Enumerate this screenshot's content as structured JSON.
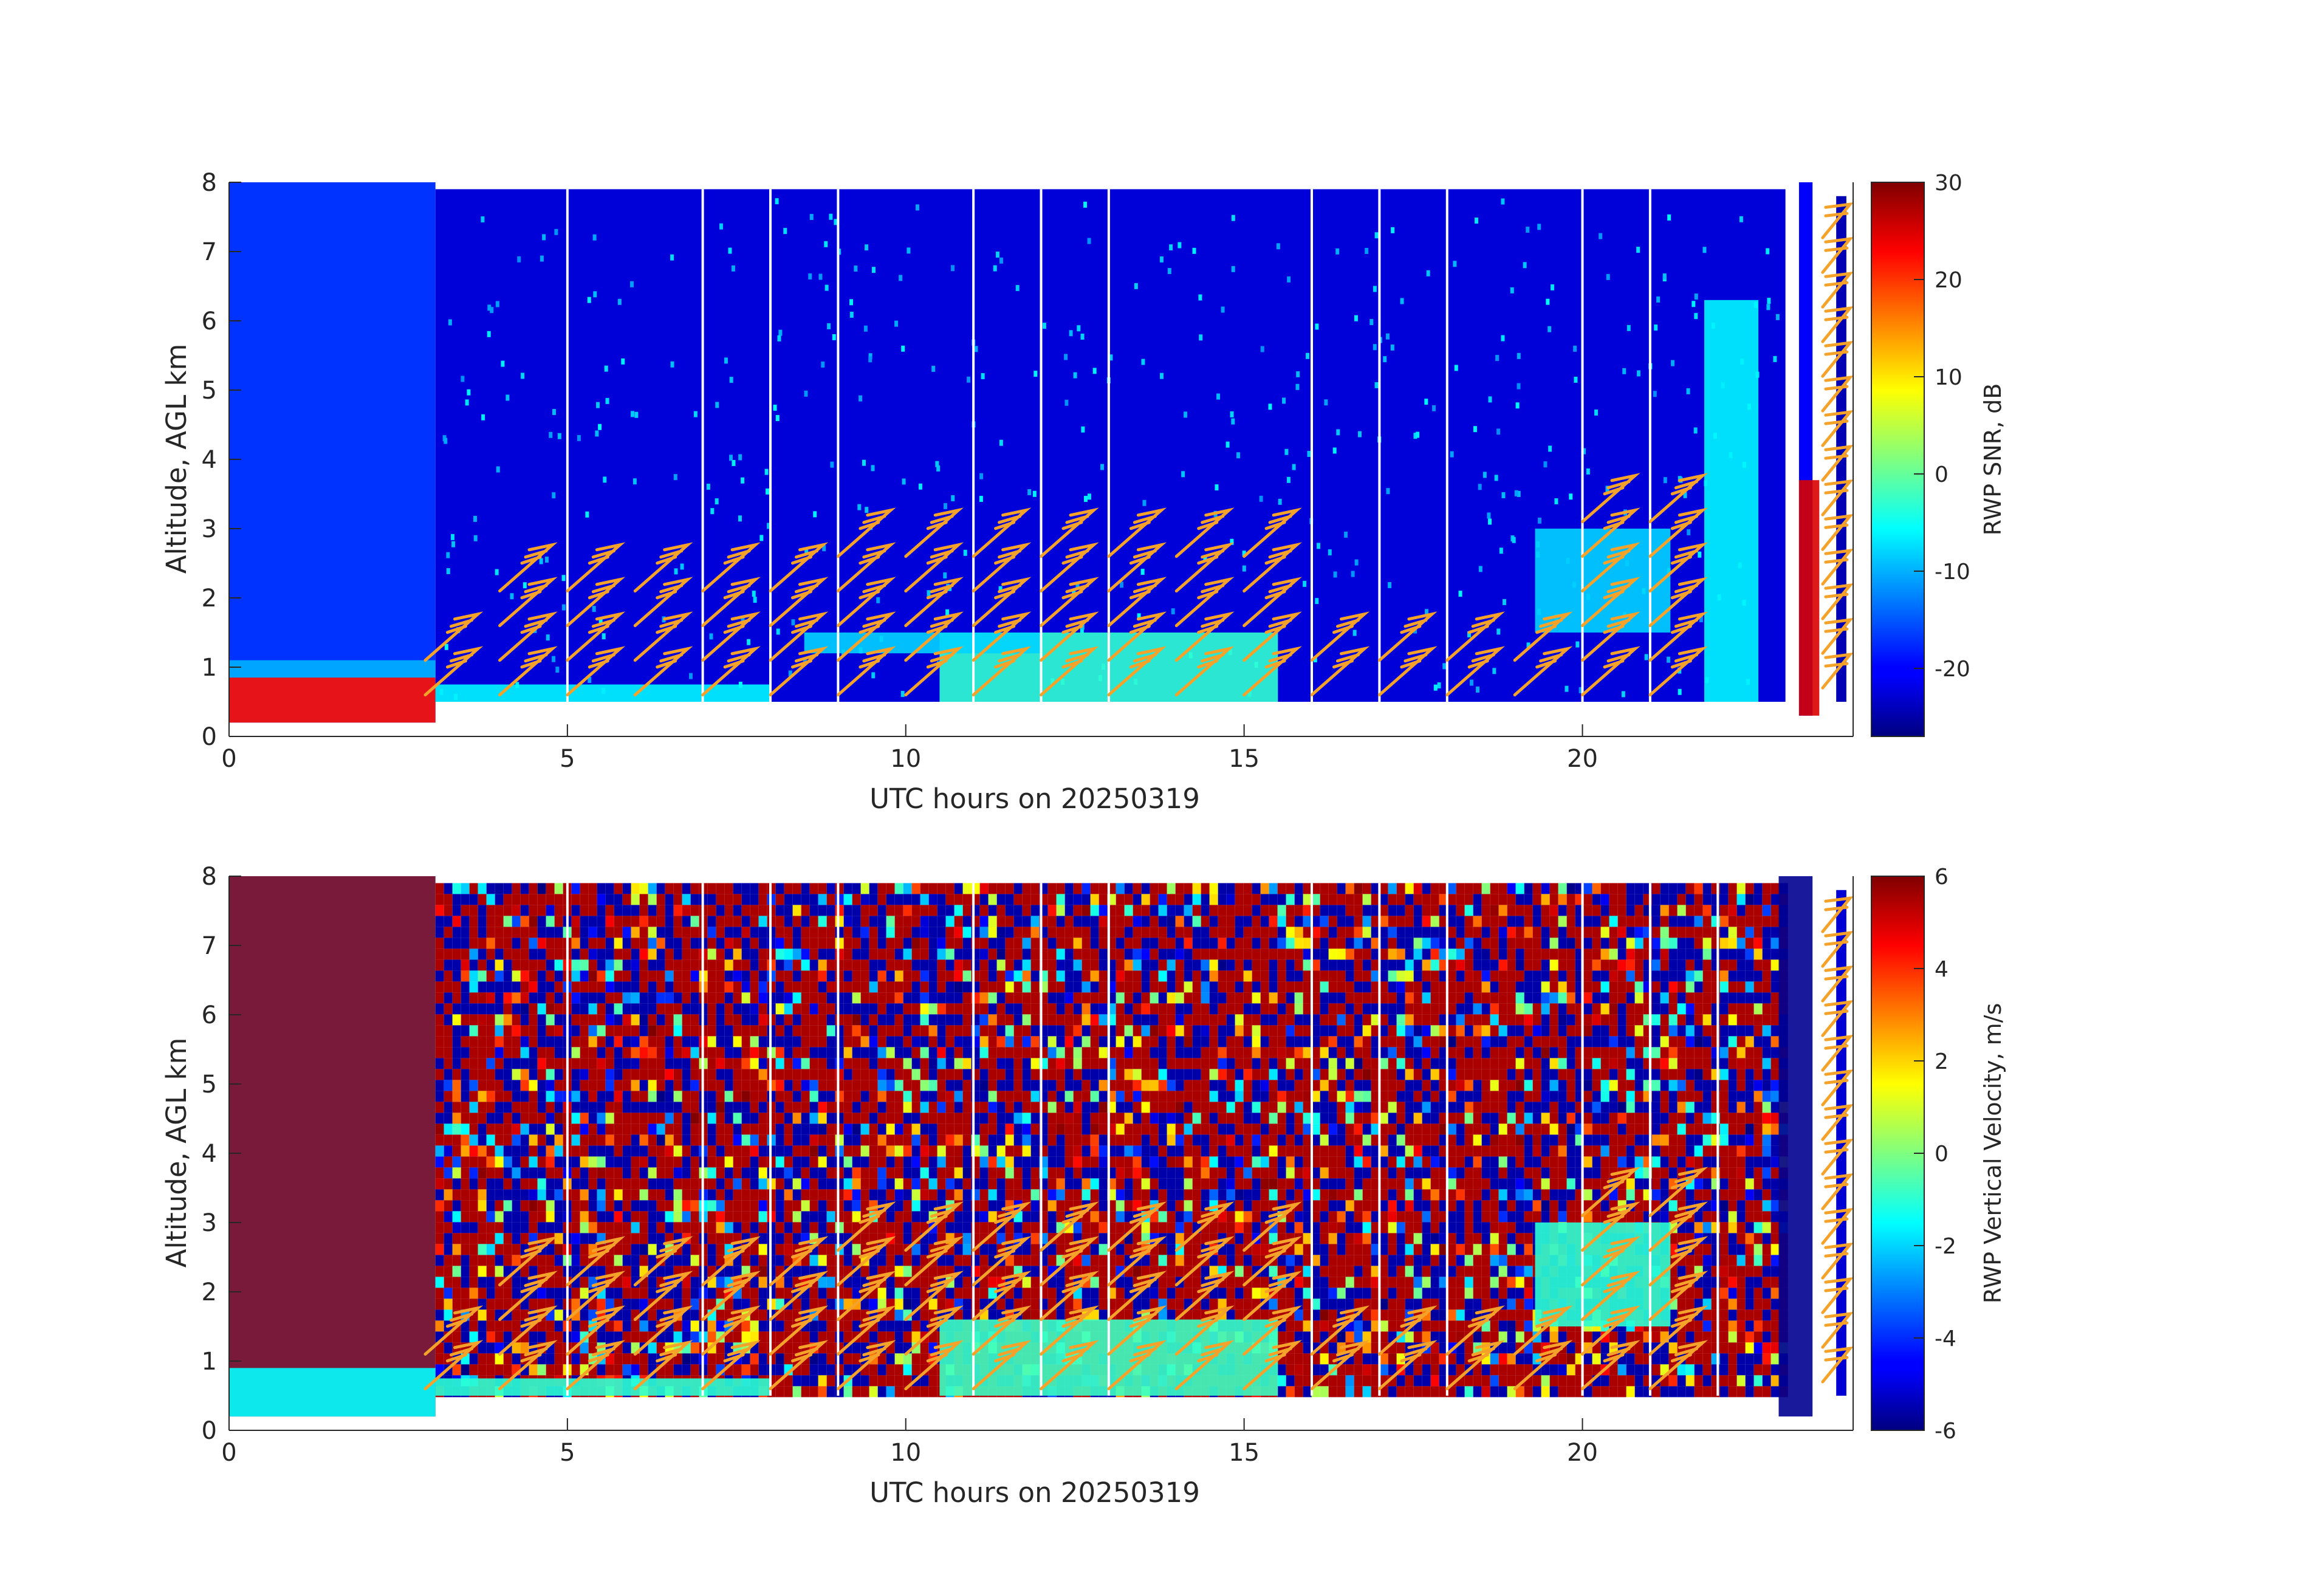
{
  "chart_data": [
    {
      "type": "heatmap",
      "xlabel": "UTC hours on 20250319",
      "ylabel": "Altitude, AGL km",
      "xlim": [
        0,
        24
      ],
      "ylim": [
        0,
        8
      ],
      "xticks": [
        0,
        5,
        10,
        15,
        20
      ],
      "yticks": [
        0,
        1,
        2,
        3,
        4,
        5,
        6,
        7,
        8
      ],
      "colorbar": {
        "label": "RWP SNR, dB",
        "range": [
          -27,
          30
        ],
        "ticks": [
          30,
          20,
          10,
          0,
          -10,
          -20
        ],
        "colormap": "jet"
      },
      "overlay": "wind barbs (orange)",
      "features": [
        {
          "hours": [
            0,
            3.05
          ],
          "altitude_km": [
            0.2,
            0.85
          ],
          "level": 22
        },
        {
          "hours": [
            0,
            3.05
          ],
          "altitude_km": [
            0.85,
            1.1
          ],
          "level": -10
        },
        {
          "hours": [
            3.05,
            8
          ],
          "altitude_km": [
            0.5,
            0.75
          ],
          "level": -6
        },
        {
          "hours": [
            10.5,
            15.5
          ],
          "altitude_km": [
            0.5,
            1.5
          ],
          "level": -3
        },
        {
          "hours": [
            8.5,
            12
          ],
          "altitude_km": [
            1.2,
            1.5
          ],
          "level": -8
        },
        {
          "hours": [
            19.3,
            21.3
          ],
          "altitude_km": [
            1.5,
            3.0
          ],
          "level": -8
        },
        {
          "hours": [
            21.8,
            22.6
          ],
          "altitude_km": [
            0.5,
            6.3
          ],
          "level": -6
        },
        {
          "hours": [
            23.2,
            23.5
          ],
          "altitude_km": [
            0.3,
            3.7
          ],
          "level": 25
        }
      ],
      "gaps_hours": [
        5,
        7,
        8,
        9,
        11,
        12,
        13,
        16,
        17,
        18,
        20,
        21
      ]
    },
    {
      "type": "heatmap",
      "xlabel": "UTC hours on 20250319",
      "ylabel": "Altitude, AGL km",
      "xlim": [
        0,
        24
      ],
      "ylim": [
        0,
        8
      ],
      "xticks": [
        0,
        5,
        10,
        15,
        20
      ],
      "yticks": [
        0,
        1,
        2,
        3,
        4,
        5,
        6,
        7,
        8
      ],
      "colorbar": {
        "label": "RWP Vertical Velocity, m/s",
        "range": [
          -6,
          6
        ],
        "ticks": [
          6,
          4,
          2,
          0,
          -2,
          -4,
          -6
        ],
        "colormap": "jet"
      },
      "overlay": "wind barbs (orange)",
      "features": [
        {
          "hours": [
            0,
            3.05
          ],
          "altitude_km": [
            0.2,
            0.9
          ],
          "level": -1.5
        },
        {
          "hours": [
            3.05,
            23
          ],
          "altitude_km": [
            0.5,
            8
          ],
          "level": "noise"
        },
        {
          "hours": [
            3.05,
            8
          ],
          "altitude_km": [
            0.5,
            0.75
          ],
          "level": -1
        },
        {
          "hours": [
            10.5,
            15.5
          ],
          "altitude_km": [
            0.5,
            1.6
          ],
          "level": -0.8
        },
        {
          "hours": [
            19.3,
            21.3
          ],
          "altitude_km": [
            1.5,
            3.0
          ],
          "level": -1
        },
        {
          "hours": [
            22.9,
            23.4
          ],
          "altitude_km": [
            0.2,
            8
          ],
          "level": -5.8
        }
      ],
      "gaps_hours": [
        5,
        7,
        8,
        9,
        11,
        12,
        13,
        16,
        17,
        18,
        20,
        21,
        22
      ]
    }
  ],
  "colors": {
    "barb": "#f5a22a",
    "axis": "#262626",
    "gap": "#ffffff"
  }
}
